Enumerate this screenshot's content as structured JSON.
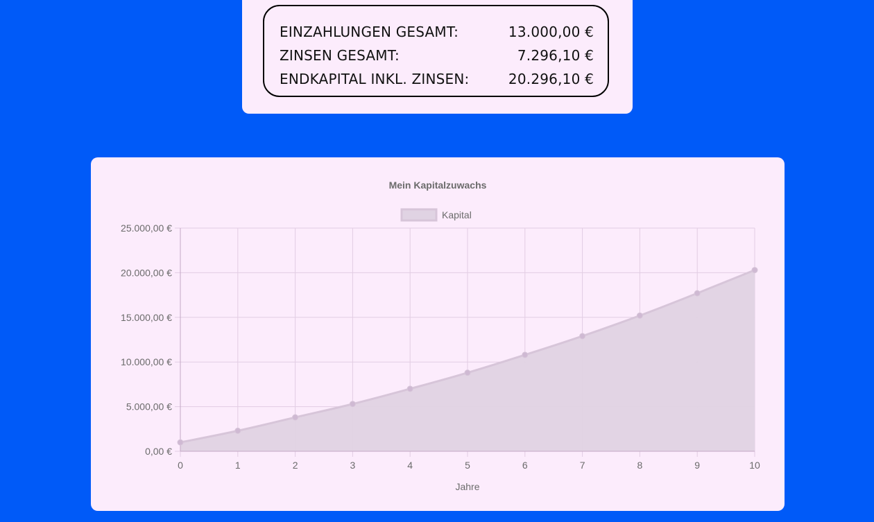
{
  "summary": {
    "rows": [
      {
        "label": "EINZAHLUNGEN GESAMT:",
        "value": "13.000,00 €"
      },
      {
        "label": "ZINSEN GESAMT:",
        "value": "7.296,10 €"
      },
      {
        "label": "ENDKAPITAL INKL. ZINSEN:",
        "value": "20.296,10 €"
      }
    ]
  },
  "chart_data": {
    "type": "area",
    "title": "Mein Kapitalzuwachs",
    "xlabel": "Jahre",
    "ylabel": "",
    "x": [
      0,
      1,
      2,
      3,
      4,
      5,
      6,
      7,
      8,
      9,
      10
    ],
    "series": [
      {
        "name": "Kapital",
        "values": [
          1000,
          2300,
          3800,
          5300,
          7000,
          8800,
          10800,
          12900,
          15200,
          17700,
          20296.1
        ]
      }
    ],
    "ylim": [
      0,
      25000
    ],
    "yticks": [
      0,
      5000,
      10000,
      15000,
      20000,
      25000
    ],
    "ytick_labels": [
      "0,00 €",
      "5.000,00 €",
      "10.000,00 €",
      "15.000,00 €",
      "20.000,00 €",
      "25.000,00 €"
    ],
    "grid": true,
    "legend": "top-center",
    "colors": {
      "fill": "#e0d3e3",
      "line": "#d7c5d9",
      "point": "#cfb9d3",
      "grid": "#e2cde3",
      "axis": "#c4a8c6",
      "text": "#6b6b6b"
    }
  }
}
